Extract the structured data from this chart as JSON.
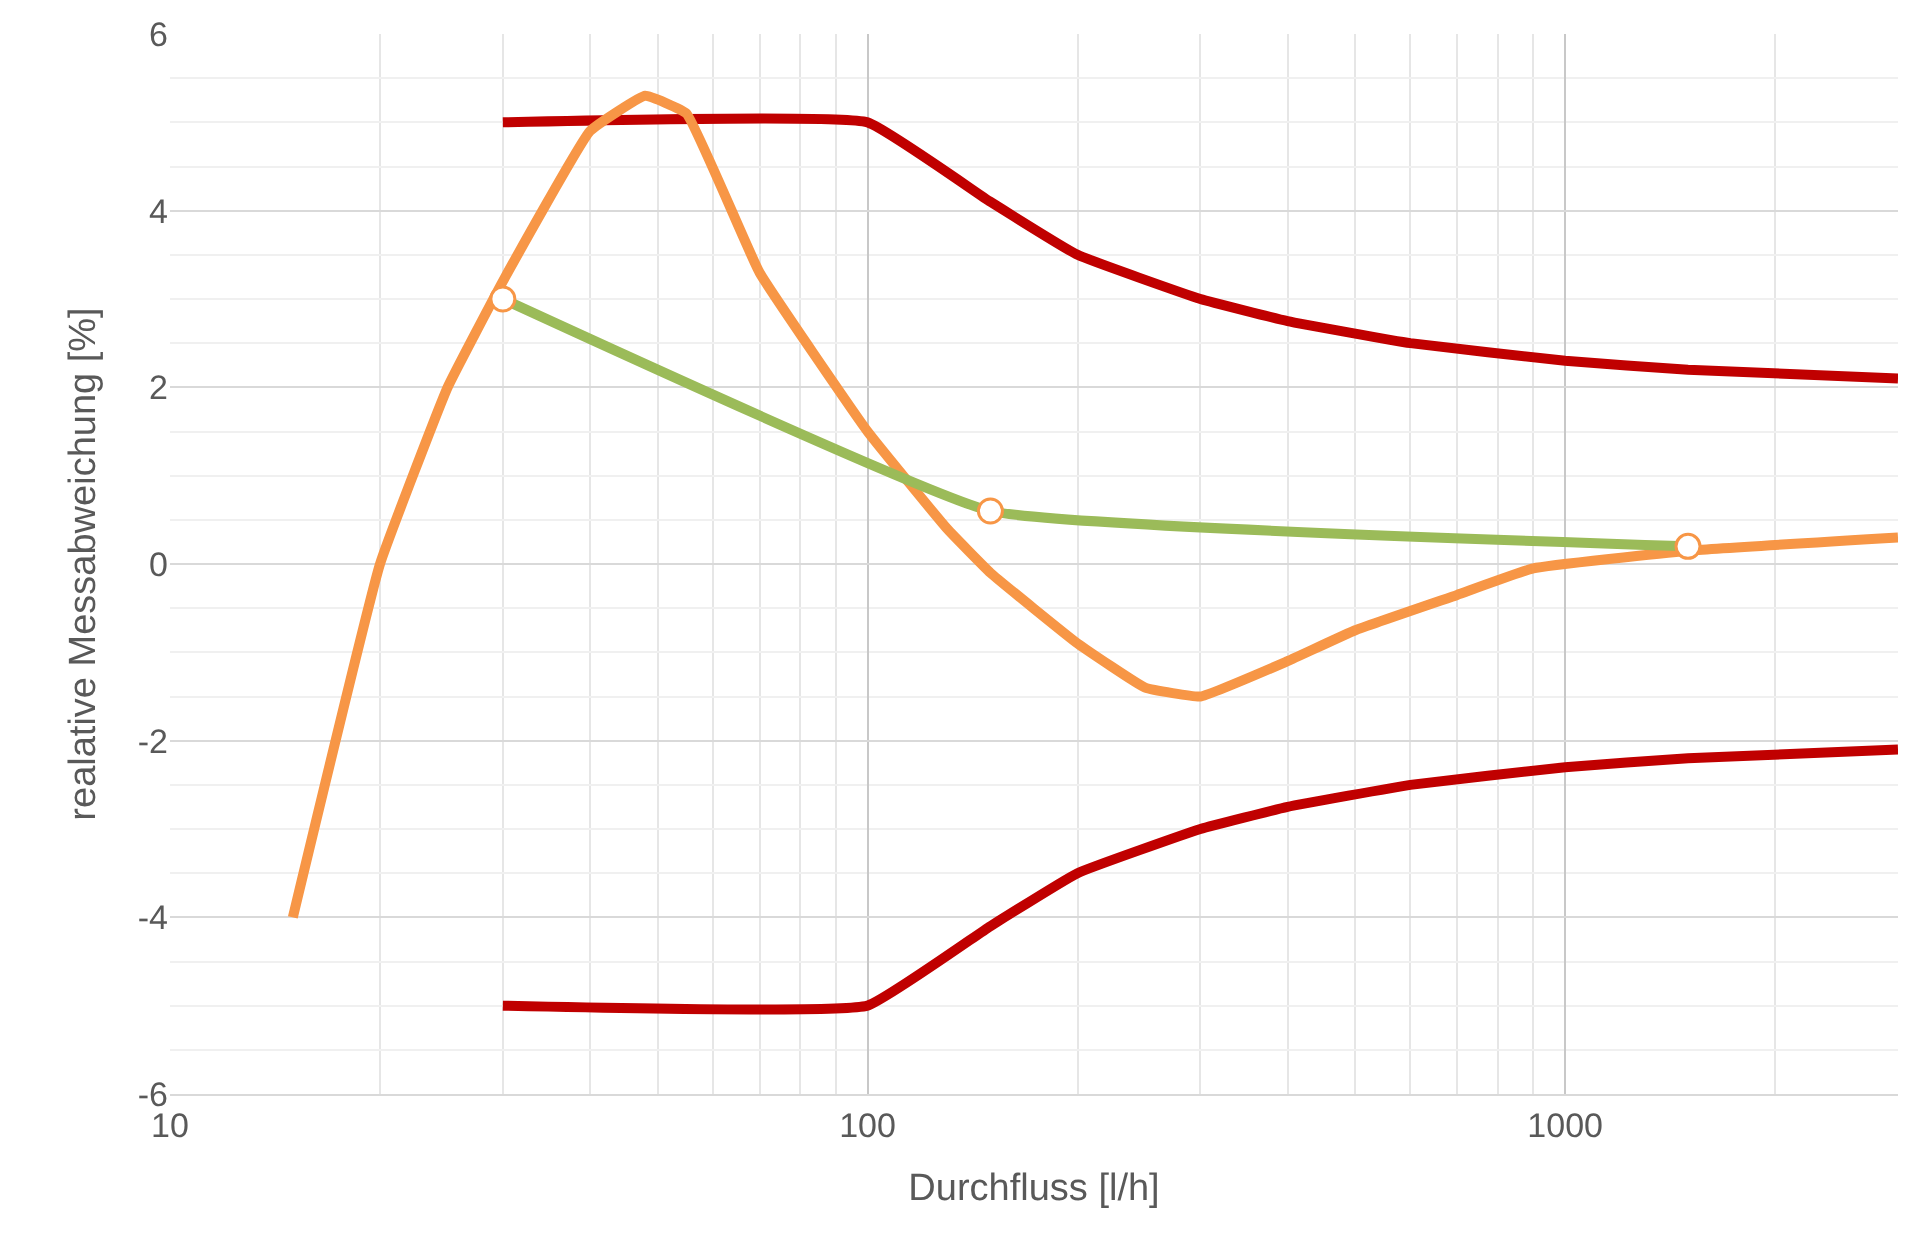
{
  "chart_data": {
    "type": "line",
    "xlabel": "Durchfluss [l/h]",
    "ylabel": "realative Messabweichung [%]",
    "log": "x",
    "grid": true,
    "xlim": [
      10,
      3000
    ],
    "xticks": [
      10,
      100,
      1000
    ],
    "ylim": [
      -6,
      6
    ],
    "yticks": [
      -6,
      -4,
      -2,
      0,
      2,
      4,
      6
    ],
    "series": [
      {
        "color": "#c00000",
        "x": [
          30,
          100,
          150,
          200,
          300,
          400,
          600,
          1000,
          1500,
          3000
        ],
        "values": [
          5,
          5,
          4.1,
          3.5,
          3.0,
          2.75,
          2.5,
          2.3,
          2.2,
          2.1
        ]
      },
      {
        "color": "#c00000",
        "x": [
          30,
          100,
          150,
          200,
          300,
          400,
          600,
          1000,
          1500,
          3000
        ],
        "values": [
          -5,
          -5,
          -4.1,
          -3.5,
          -3.0,
          -2.75,
          -2.5,
          -2.3,
          -2.2,
          -2.1
        ]
      },
      {
        "color": "#f79646",
        "x": [
          15,
          20,
          25,
          30,
          40,
          48,
          55,
          70,
          100,
          130,
          150,
          200,
          250,
          300,
          400,
          500,
          700,
          900,
          1500,
          3000
        ],
        "values": [
          -4,
          0,
          2,
          3.2,
          4.9,
          5.3,
          5.1,
          3.3,
          1.5,
          0.4,
          -0.1,
          -0.9,
          -1.4,
          -1.5,
          -1.1,
          -0.75,
          -0.35,
          -0.05,
          0.15,
          0.3
        ]
      },
      {
        "color": "#9bbb59",
        "x": [
          30,
          150,
          1500
        ],
        "values": [
          3,
          0.6,
          0.2
        ]
      },
      {
        "type": "scatter",
        "marker": "circle",
        "color": "#f79646",
        "x": [
          30,
          150,
          1500
        ],
        "values": [
          3,
          0.6,
          0.2
        ]
      }
    ]
  }
}
